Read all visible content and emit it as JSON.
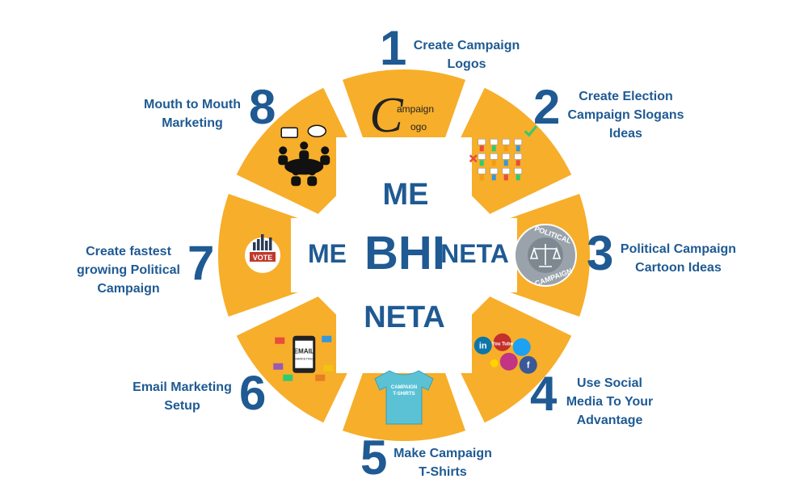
{
  "center": {
    "top": "ME",
    "left": "ME",
    "middle": "BHI",
    "right": "NETA",
    "bottom": "NETA"
  },
  "steps": [
    {
      "number": "1",
      "label_lines": [
        "Create Campaign",
        "Logos"
      ],
      "icon": "campaign-logo-icon",
      "icon_text": [
        "ampaign",
        "ogo"
      ]
    },
    {
      "number": "2",
      "label_lines": [
        "Create Election",
        "Campaign Slogans",
        "Ideas"
      ],
      "icon": "slogan-voting-icon"
    },
    {
      "number": "3",
      "label_lines": [
        "Political Campaign",
        "Cartoon Ideas"
      ],
      "icon": "political-campaign-scale-icon",
      "icon_text": [
        "POLITICAL",
        "CAMPAIGN"
      ]
    },
    {
      "number": "4",
      "label_lines": [
        "Use Social",
        "Media To Your",
        "Advantage"
      ],
      "icon": "social-media-icon",
      "icon_text": [
        "in",
        "You Tube",
        "f"
      ]
    },
    {
      "number": "5",
      "label_lines": [
        "Make Campaign",
        "T-Shirts"
      ],
      "icon": "tshirt-icon",
      "icon_text": [
        "CAMPAIGN",
        "T-SHIRTS"
      ]
    },
    {
      "number": "6",
      "label_lines": [
        "Email Marketing",
        "Setup"
      ],
      "icon": "email-marketing-icon",
      "icon_text": [
        "EMAIL",
        "MARKETING"
      ]
    },
    {
      "number": "7",
      "label_lines": [
        "Create fastest",
        "growing Political",
        "Campaign"
      ],
      "icon": "vote-icon",
      "icon_text": [
        "VOTE"
      ]
    },
    {
      "number": "8",
      "label_lines": [
        "Mouth to Mouth",
        "Marketing"
      ],
      "icon": "meeting-chat-icon"
    }
  ],
  "colors": {
    "segment": "#f7ae2a",
    "segment_border": "#ffffff",
    "text": "#1f5a93",
    "inner": "#ffffff"
  }
}
